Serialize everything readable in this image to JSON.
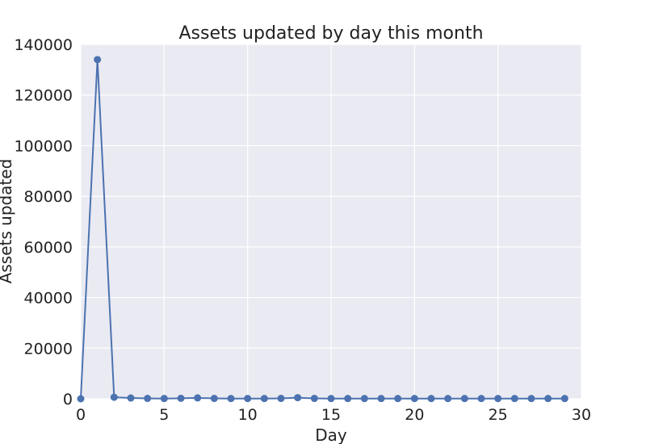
{
  "chart_data": {
    "type": "line",
    "title": "Assets updated by day this month",
    "xlabel": "Day",
    "ylabel": "Assets updated",
    "xlim": [
      0,
      30
    ],
    "ylim": [
      0,
      140000
    ],
    "xticks": [
      "0",
      "5",
      "10",
      "15",
      "20",
      "25",
      "30"
    ],
    "yticks": [
      "0",
      "20000",
      "40000",
      "60000",
      "80000",
      "100000",
      "120000",
      "140000"
    ],
    "grid": true,
    "legend": "none",
    "series": [
      {
        "x": [
          0,
          1,
          2,
          3,
          4,
          5,
          6,
          7,
          8,
          9,
          10,
          11,
          12,
          13,
          14,
          15,
          16,
          17,
          18,
          19,
          20,
          21,
          22,
          23,
          24,
          25,
          26,
          27,
          28,
          29
        ],
        "values": [
          0,
          134000,
          600,
          300,
          150,
          100,
          200,
          350,
          150,
          100,
          100,
          100,
          150,
          450,
          150,
          100,
          100,
          100,
          100,
          100,
          100,
          100,
          100,
          100,
          100,
          100,
          100,
          100,
          100,
          100
        ]
      }
    ],
    "colors": {
      "line": "#4c72b0",
      "plot_background": "#eaeaf2",
      "grid": "#ffffff"
    }
  }
}
